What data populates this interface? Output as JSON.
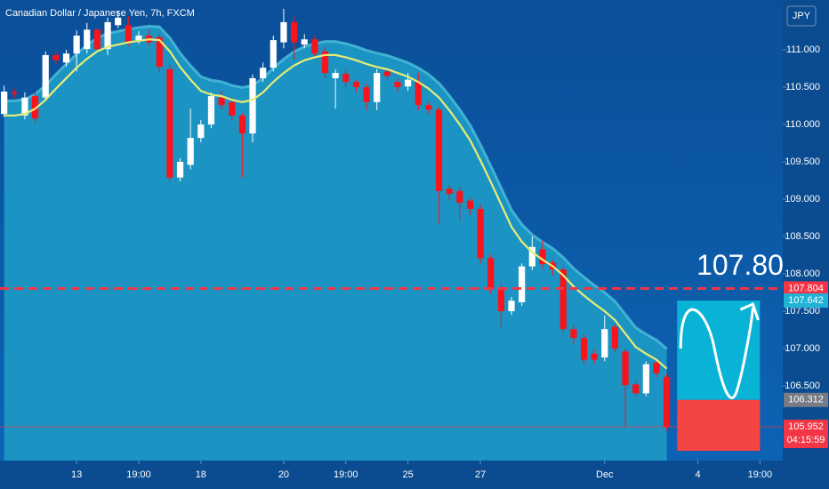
{
  "chart_data": {
    "type": "candlestick",
    "title": "Canadian Dollar / Japanese Yen, 7h, FXCM",
    "currency": "JPY",
    "open": [
      110.14,
      110.43,
      110.12,
      110.38,
      110.36,
      110.93,
      110.83,
      110.95,
      111.01,
      111.27,
      111.01,
      111.33,
      111.33,
      111.13,
      111.19,
      111.17,
      110.74,
      109.29,
      109.46,
      109.82,
      110.0,
      110.36,
      110.3,
      110.12,
      109.88,
      110.62,
      110.76,
      111.1,
      111.37,
      111.07,
      111.14,
      110.98,
      110.62,
      110.68,
      110.57,
      110.5,
      110.3,
      110.71,
      110.57,
      110.51,
      110.57,
      110.26,
      110.2,
      109.14,
      109.11,
      108.98,
      108.87,
      108.21,
      107.8,
      107.5,
      107.62,
      108.1,
      108.33,
      108.15,
      108.06,
      107.26,
      107.14,
      106.93,
      106.88,
      107.29,
      106.96,
      106.52,
      106.4,
      106.81,
      106.62
    ],
    "high": [
      110.52,
      110.48,
      110.43,
      110.43,
      110.98,
      110.98,
      111.0,
      111.26,
      111.36,
      111.33,
      111.43,
      111.52,
      111.45,
      111.25,
      111.27,
      111.22,
      110.8,
      109.55,
      110.21,
      110.06,
      110.43,
      110.45,
      110.36,
      110.15,
      110.67,
      110.83,
      111.19,
      111.55,
      111.45,
      111.21,
      111.19,
      111.05,
      110.74,
      110.74,
      110.6,
      110.55,
      110.74,
      110.76,
      110.62,
      110.69,
      110.69,
      110.3,
      110.24,
      109.19,
      109.17,
      109.02,
      108.93,
      108.26,
      107.86,
      107.69,
      108.14,
      108.5,
      108.45,
      108.19,
      108.1,
      107.31,
      107.19,
      106.98,
      107.44,
      107.33,
      107.0,
      106.57,
      106.83,
      106.86,
      106.67
    ],
    "low": [
      110.1,
      110.36,
      110.07,
      110.02,
      110.31,
      110.81,
      110.78,
      110.71,
      110.95,
      110.95,
      110.93,
      111.29,
      111.05,
      111.08,
      111.05,
      110.7,
      109.24,
      109.24,
      109.4,
      109.76,
      109.95,
      110.2,
      110.05,
      109.29,
      109.76,
      110.57,
      110.71,
      111.02,
      110.86,
      111.02,
      110.88,
      110.62,
      110.21,
      110.5,
      110.43,
      110.19,
      110.19,
      110.6,
      110.43,
      110.45,
      110.19,
      110.14,
      108.67,
      108.98,
      108.71,
      108.79,
      108.14,
      107.74,
      107.29,
      107.45,
      107.57,
      108.05,
      108.07,
      107.98,
      107.21,
      107.05,
      106.79,
      106.8,
      106.83,
      106.95,
      105.95,
      106.36,
      106.36,
      106.62,
      105.9
    ],
    "close": [
      110.44,
      110.41,
      110.36,
      110.08,
      110.93,
      110.86,
      110.95,
      111.19,
      111.27,
      111.01,
      111.37,
      111.43,
      111.1,
      111.19,
      111.1,
      110.77,
      109.29,
      109.5,
      109.82,
      110.0,
      110.38,
      110.26,
      110.12,
      109.88,
      110.62,
      110.76,
      111.13,
      111.37,
      111.1,
      111.14,
      110.95,
      110.69,
      110.69,
      110.57,
      110.5,
      110.3,
      110.69,
      110.65,
      110.5,
      110.6,
      110.26,
      110.2,
      109.11,
      109.07,
      108.95,
      108.87,
      108.21,
      107.8,
      107.5,
      107.64,
      108.1,
      108.36,
      108.13,
      108.06,
      107.26,
      107.14,
      106.85,
      106.85,
      107.26,
      107.0,
      106.51,
      106.4,
      106.79,
      106.67,
      105.952
    ],
    "up_color": "#ffffff",
    "down_color": "#f7141c",
    "ma": {
      "color": "#e9ec73",
      "values": [
        110.12,
        110.12,
        110.14,
        110.21,
        110.33,
        110.48,
        110.62,
        110.76,
        110.88,
        110.98,
        111.04,
        111.07,
        111.1,
        111.12,
        111.14,
        111.13,
        110.98,
        110.77,
        110.6,
        110.45,
        110.4,
        110.38,
        110.33,
        110.3,
        110.33,
        110.43,
        110.57,
        110.69,
        110.79,
        110.86,
        110.9,
        110.93,
        110.93,
        110.9,
        110.86,
        110.81,
        110.77,
        110.74,
        110.69,
        110.64,
        110.57,
        110.48,
        110.36,
        110.19,
        110.0,
        109.79,
        109.52,
        109.23,
        108.93,
        108.63,
        108.43,
        108.29,
        108.19,
        108.1,
        107.98,
        107.83,
        107.71,
        107.6,
        107.5,
        107.38,
        107.2,
        107.02,
        106.93,
        106.85,
        106.73
      ]
    },
    "xlim": [
      -0.4,
      75.2
    ],
    "xticks": [
      {
        "value": 7,
        "label": "13"
      },
      {
        "value": 13,
        "label": "19:00"
      },
      {
        "value": 19,
        "label": "18"
      },
      {
        "value": 27,
        "label": "20"
      },
      {
        "value": 33,
        "label": "19:00"
      },
      {
        "value": 39,
        "label": "25"
      },
      {
        "value": 46,
        "label": "27"
      },
      {
        "value": 58,
        "label": "Dec"
      },
      {
        "value": 67,
        "label": "4"
      },
      {
        "value": 73,
        "label": "19:00"
      }
    ],
    "ylim": [
      105.5,
      111.667
    ],
    "yticks": [
      {
        "value": 106.5,
        "label": "106.500"
      },
      {
        "value": 107,
        "label": "107.000"
      },
      {
        "value": 107.5,
        "label": "107.500"
      },
      {
        "value": 108,
        "label": "108.000"
      },
      {
        "value": 108.5,
        "label": "108.500"
      },
      {
        "value": 109,
        "label": "109.000"
      },
      {
        "value": 109.5,
        "label": "109.500"
      },
      {
        "value": 110,
        "label": "110.000"
      },
      {
        "value": 110.5,
        "label": "110.500"
      },
      {
        "value": 111,
        "label": "111.000"
      }
    ],
    "annotation": "107.80",
    "price_labels": [
      {
        "value": 107.804,
        "color": "#f23645"
      },
      {
        "value": 107.642,
        "color": "#1fb3d6"
      },
      {
        "value": 106.312,
        "color": "#787b86"
      },
      {
        "value": 105.952,
        "color": "#f23645"
      }
    ],
    "countdown": "04:15:59",
    "position": {
      "x": [
        65,
        73
      ],
      "stop": 105.63,
      "profit_color": "#08b3d6",
      "loss_color": "#f44444"
    }
  }
}
